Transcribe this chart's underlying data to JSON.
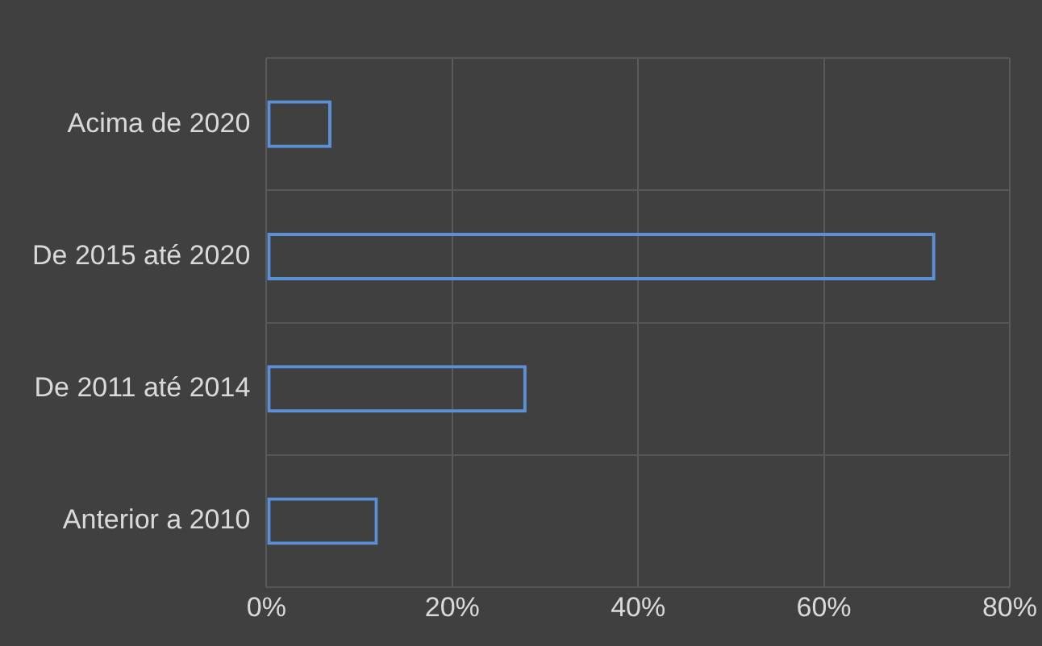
{
  "chart_data": {
    "type": "bar",
    "orientation": "horizontal",
    "categories": [
      "Acima de 2020",
      "De 2015 até 2020",
      "De 2011 até 2014",
      "Anterior a 2010"
    ],
    "values": [
      7,
      72,
      28,
      12
    ],
    "color": "#5b8fd6",
    "xlim": [
      0,
      80
    ],
    "xticks": [
      {
        "value": 0,
        "label": "0%"
      },
      {
        "value": 20,
        "label": "20%"
      },
      {
        "value": 40,
        "label": "40%"
      },
      {
        "value": 60,
        "label": "60%"
      },
      {
        "value": 80,
        "label": "80%"
      }
    ],
    "grid": true,
    "legend": false
  }
}
